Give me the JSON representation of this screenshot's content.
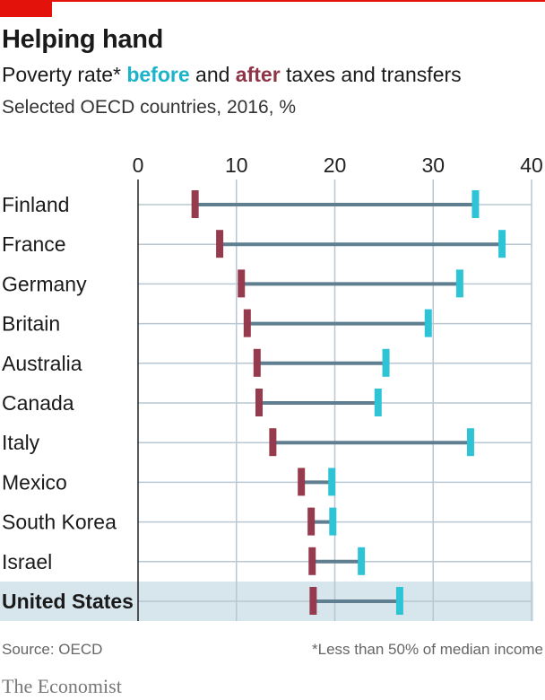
{
  "title": "Helping hand",
  "subtitle": {
    "prefix": "Poverty rate* ",
    "before": "before",
    "mid": " and ",
    "after": "after",
    "suffix": " taxes and transfers"
  },
  "subtitle2": "Selected OECD countries, 2016, %",
  "source": "Source: OECD",
  "footnote": "*Less than 50% of median income",
  "logo": "The Economist",
  "colors": {
    "before": "#2ec4d6",
    "after": "#963a4e",
    "connector": "#5f7f90",
    "grid": "#b8c7d1",
    "highlight": "#d7e5ed",
    "brand": "#e3120b"
  },
  "chart_data": {
    "type": "dumbbell",
    "xlim": [
      0,
      40
    ],
    "xticks": [
      "0",
      "10",
      "20",
      "30",
      "40"
    ],
    "grid": true,
    "highlight": "United States",
    "categories": [
      "Finland",
      "France",
      "Germany",
      "Britain",
      "Australia",
      "Canada",
      "Italy",
      "Mexico",
      "South Korea",
      "Israel",
      "United States"
    ],
    "series": [
      {
        "name": "before",
        "values": [
          34.3,
          37.0,
          32.7,
          29.5,
          25.2,
          24.4,
          33.8,
          19.7,
          19.8,
          22.7,
          26.6
        ]
      },
      {
        "name": "after",
        "values": [
          5.8,
          8.3,
          10.5,
          11.1,
          12.1,
          12.3,
          13.7,
          16.6,
          17.6,
          17.7,
          17.8
        ]
      }
    ]
  }
}
